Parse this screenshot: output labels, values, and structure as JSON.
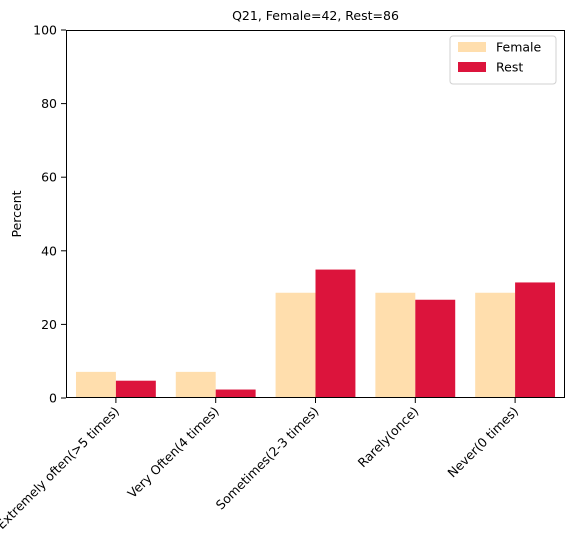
{
  "chart_data": {
    "type": "bar",
    "title": "Q21, Female=42, Rest=86",
    "xlabel": "",
    "ylabel": "Percent",
    "ylim": [
      0,
      100
    ],
    "yticks": [
      0,
      20,
      40,
      60,
      80,
      100
    ],
    "categories": [
      "Extremely often(>5 times)",
      "Very Often(4 times)",
      "Sometimes(2-3 times)",
      "Rarely(once)",
      "Never(0 times)"
    ],
    "series": [
      {
        "name": "Female",
        "color": "#FFDEAD",
        "values": [
          7.1,
          7.1,
          28.6,
          28.6,
          28.6
        ]
      },
      {
        "name": "Rest",
        "color": "#DC143C",
        "values": [
          4.7,
          2.3,
          34.9,
          26.7,
          31.4
        ]
      }
    ],
    "grid": false,
    "legend_position": "top-right"
  }
}
